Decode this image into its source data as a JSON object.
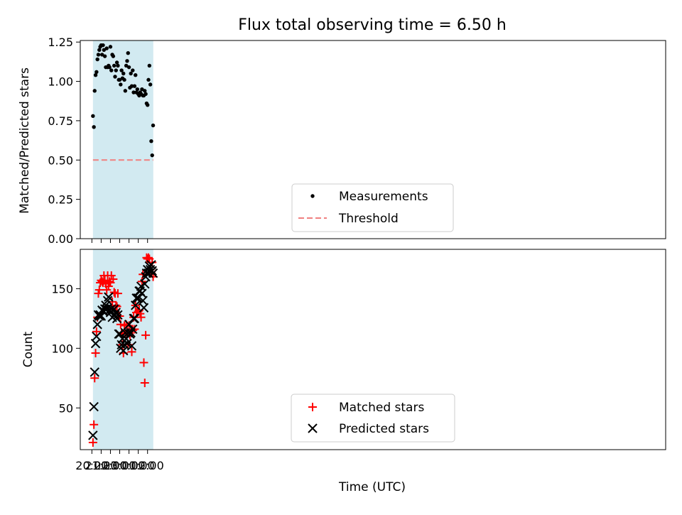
{
  "chart_data": [
    {
      "type": "scatter",
      "title": "Flux total observing time = 6.50 h",
      "xlabel": "",
      "ylabel": "Matched/Predicted stars",
      "xlim_minutes_from_start": [
        -75,
        3710
      ],
      "ylim": [
        0,
        1.26
      ],
      "yticks": [
        0.0,
        0.25,
        0.5,
        0.75,
        1.0,
        1.25
      ],
      "ytick_labels": [
        "0.00",
        "0.25",
        "0.50",
        "0.75",
        "1.00",
        "1.25"
      ],
      "shaded_span": [
        "20:07",
        "02:37"
      ],
      "shade_color": "#add8e6",
      "grid": false,
      "legend_position": "lower center",
      "threshold": {
        "name": "Threshold",
        "value": 0.5,
        "color": "#f08080",
        "style": "dashed"
      },
      "series": [
        {
          "name": "Measurements",
          "color": "#000000",
          "marker": "dot",
          "x": [
            "20:07",
            "20:13",
            "20:18",
            "20:24",
            "20:30",
            "20:36",
            "20:42",
            "20:48",
            "20:54",
            "21:00",
            "21:06",
            "21:12",
            "21:18",
            "21:24",
            "21:30",
            "21:36",
            "21:42",
            "21:48",
            "21:54",
            "22:00",
            "22:06",
            "22:12",
            "22:18",
            "22:24",
            "22:30",
            "22:36",
            "22:42",
            "22:48",
            "22:54",
            "23:00",
            "23:06",
            "23:12",
            "23:18",
            "23:24",
            "23:30",
            "23:36",
            "23:42",
            "23:48",
            "23:54",
            "00:00",
            "00:06",
            "00:12",
            "00:18",
            "00:24",
            "00:30",
            "00:36",
            "00:42",
            "00:48",
            "00:54",
            "01:00",
            "01:06",
            "01:12",
            "01:18",
            "01:24",
            "01:30",
            "01:36",
            "01:42",
            "01:48",
            "01:54",
            "02:00",
            "02:06",
            "02:12",
            "02:18",
            "02:24",
            "02:30",
            "02:36"
          ],
          "y": [
            0.78,
            0.71,
            0.94,
            1.04,
            1.06,
            1.14,
            1.17,
            1.2,
            1.22,
            1.23,
            1.17,
            1.23,
            1.2,
            1.16,
            1.09,
            1.21,
            1.09,
            1.1,
            1.09,
            1.22,
            1.07,
            1.17,
            1.16,
            1.1,
            1.03,
            1.07,
            1.12,
            1.1,
            1.01,
            1.01,
            0.98,
            1.07,
            1.02,
            1.05,
            1.01,
            0.94,
            1.1,
            1.13,
            1.18,
            1.09,
            0.96,
            1.05,
            0.97,
            1.07,
            0.93,
            0.97,
            1.04,
            0.93,
            0.95,
            0.92,
            0.91,
            0.93,
            0.92,
            0.95,
            0.91,
            0.91,
            0.94,
            0.92,
            0.86,
            0.85,
            1.01,
            1.1,
            0.98,
            0.62,
            0.53,
            0.72
          ]
        }
      ]
    },
    {
      "type": "scatter",
      "title": "",
      "xlabel": "Time (UTC)",
      "ylabel": "Count",
      "xlim_minutes_from_start": [
        -75,
        3710
      ],
      "ylim": [
        15,
        183
      ],
      "yticks": [
        50,
        100,
        150
      ],
      "ytick_labels": [
        "50",
        "100",
        "150"
      ],
      "xticks": [
        "20:00",
        "21:00",
        "22:00",
        "23:00",
        "00:00",
        "01:00",
        "02:00"
      ],
      "shaded_span": [
        "20:07",
        "02:37"
      ],
      "shade_color": "#add8e6",
      "grid": false,
      "legend_position": "lower center",
      "series": [
        {
          "name": "Matched stars",
          "color": "#ff0000",
          "marker": "plus",
          "x": [
            "20:07",
            "20:13",
            "20:18",
            "20:24",
            "20:30",
            "20:36",
            "20:42",
            "20:48",
            "20:54",
            "21:00",
            "21:06",
            "21:12",
            "21:18",
            "21:24",
            "21:30",
            "21:36",
            "21:42",
            "21:48",
            "21:54",
            "22:00",
            "22:06",
            "22:12",
            "22:18",
            "22:24",
            "22:30",
            "22:36",
            "22:42",
            "22:48",
            "22:54",
            "23:00",
            "23:06",
            "23:12",
            "23:18",
            "23:24",
            "23:30",
            "23:36",
            "23:42",
            "23:48",
            "23:54",
            "00:00",
            "00:06",
            "00:12",
            "00:18",
            "00:24",
            "00:30",
            "00:36",
            "00:42",
            "00:48",
            "00:54",
            "01:00",
            "01:06",
            "01:12",
            "01:18",
            "01:24",
            "01:30",
            "01:36",
            "01:42",
            "01:48",
            "01:54",
            "02:00",
            "02:06",
            "02:12",
            "02:18",
            "02:24",
            "02:30",
            "02:36"
          ],
          "y": [
            21,
            36,
            75,
            96,
            114,
            126,
            146,
            149,
            155,
            157,
            156,
            155,
            161,
            157,
            154,
            149,
            161,
            152,
            156,
            155,
            161,
            139,
            158,
            147,
            146,
            136,
            135,
            146,
            127,
            127,
            120,
            113,
            103,
            96,
            119,
            112,
            120,
            115,
            103,
            119,
            111,
            116,
            97,
            115,
            126,
            116,
            136,
            130,
            130,
            131,
            132,
            129,
            126,
            156,
            162,
            88,
            71,
            111,
            176,
            175,
            176,
            175,
            166,
            163,
            172,
            160
          ]
        },
        {
          "name": "Predicted stars",
          "color": "#000000",
          "marker": "x",
          "x": [
            "20:07",
            "20:13",
            "20:18",
            "20:24",
            "20:30",
            "20:36",
            "20:42",
            "20:48",
            "20:54",
            "21:00",
            "21:06",
            "21:12",
            "21:18",
            "21:24",
            "21:30",
            "21:36",
            "21:42",
            "21:48",
            "21:54",
            "22:00",
            "22:06",
            "22:12",
            "22:18",
            "22:24",
            "22:30",
            "22:36",
            "22:42",
            "22:48",
            "22:54",
            "23:00",
            "23:06",
            "23:12",
            "23:18",
            "23:24",
            "23:30",
            "23:36",
            "23:42",
            "23:48",
            "23:54",
            "00:00",
            "00:06",
            "00:12",
            "00:18",
            "00:24",
            "00:30",
            "00:36",
            "00:42",
            "00:48",
            "00:54",
            "01:00",
            "01:06",
            "01:12",
            "01:18",
            "01:24",
            "01:30",
            "01:36",
            "01:42",
            "01:48",
            "01:54",
            "02:00",
            "02:06",
            "02:12",
            "02:18",
            "02:24",
            "02:30",
            "02:36"
          ],
          "y": [
            27,
            51,
            80,
            104,
            110,
            120,
            128,
            127,
            128,
            127,
            132,
            131,
            131,
            133,
            136,
            133,
            140,
            143,
            132,
            130,
            133,
            126,
            132,
            133,
            128,
            130,
            125,
            128,
            112,
            112,
            100,
            103,
            108,
            98,
            103,
            113,
            108,
            104,
            113,
            120,
            112,
            113,
            102,
            116,
            125,
            125,
            136,
            142,
            142,
            142,
            148,
            148,
            152,
            146,
            140,
            134,
            154,
            160,
            163,
            166,
            163,
            169,
            166,
            170,
            165,
            163
          ]
        }
      ]
    }
  ]
}
